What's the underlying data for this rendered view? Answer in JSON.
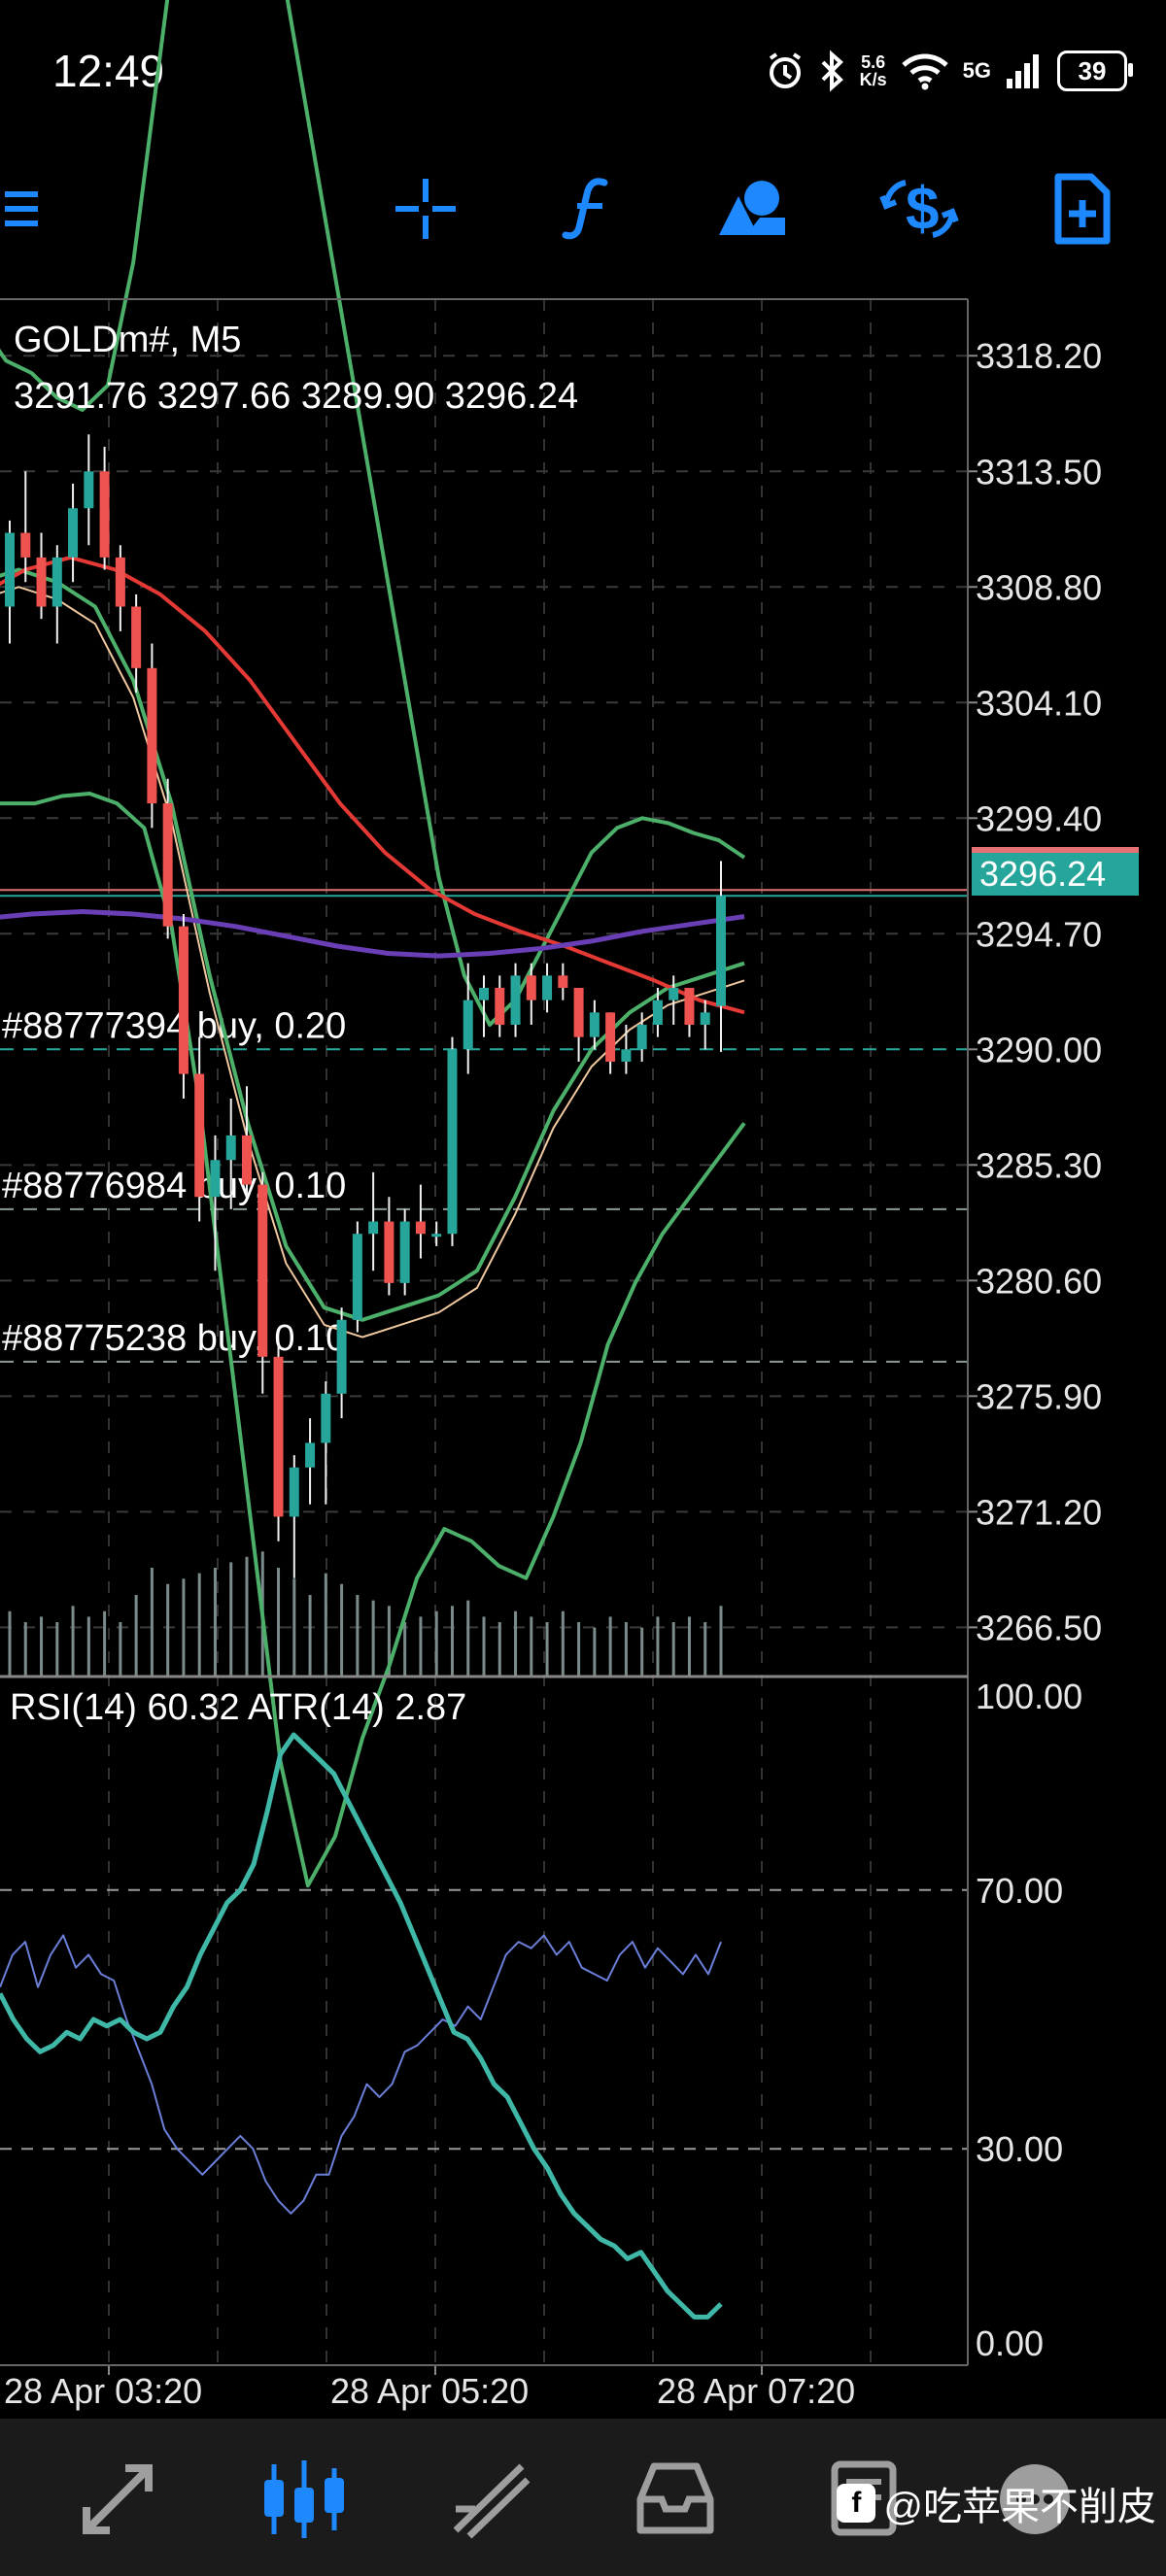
{
  "status_bar": {
    "time": "12:49",
    "net_speed_value": "5.6",
    "net_speed_unit": "K/s",
    "network": "5G",
    "battery": "39",
    "icons": [
      "alarm-icon",
      "bluetooth-icon",
      "wifi-icon",
      "signal-icon",
      "battery-icon"
    ]
  },
  "toolbar": {
    "icons": [
      "menu-icon",
      "crosshair-icon",
      "indicators-icon",
      "objects-icon",
      "trade-icon",
      "new-order-icon"
    ],
    "accent": "#1e88ff"
  },
  "chart": {
    "symbol": "GOLDm#, M5",
    "ohlc": "3291.76 3297.66 3289.90 3296.24",
    "current_price": "3296.24",
    "price_ticks": [
      "3318.20",
      "3313.50",
      "3308.80",
      "3304.10",
      "3299.40",
      "3294.70",
      "3290.00",
      "3285.30",
      "3280.60",
      "3275.90",
      "3271.20",
      "3266.50"
    ],
    "orders": [
      {
        "label": "#88777394 buy, 0.20",
        "price": 3290.0
      },
      {
        "label": "#88776984 buy, 0.10",
        "price": 3283.5
      },
      {
        "label": "#88775238 buy, 0.10",
        "price": 3277.3
      }
    ],
    "colors": {
      "bull": "#26a69a",
      "bear": "#ef5350",
      "bollinger": "#4caf6a",
      "ma_red": "#e53935",
      "ma_purple": "#6a3fb5",
      "ma_thin": "#f0c8a0",
      "price_line": "#e57373"
    }
  },
  "chart_data": {
    "type": "line",
    "price_range": [
      3264.5,
      3320.5
    ],
    "candles": [
      [
        3308.0,
        3311.5,
        3306.5,
        3311.0
      ],
      [
        3311.0,
        3313.5,
        3309.0,
        3310.0
      ],
      [
        3310.0,
        3311.0,
        3307.5,
        3308.0
      ],
      [
        3308.0,
        3310.5,
        3306.5,
        3310.0
      ],
      [
        3310.0,
        3313.0,
        3309.0,
        3312.0
      ],
      [
        3312.0,
        3315.0,
        3310.5,
        3313.5
      ],
      [
        3313.5,
        3314.5,
        3309.5,
        3310.0
      ],
      [
        3310.0,
        3310.5,
        3307.0,
        3308.0
      ],
      [
        3308.0,
        3308.5,
        3304.5,
        3305.5
      ],
      [
        3305.5,
        3306.5,
        3299.0,
        3300.0
      ],
      [
        3300.0,
        3301.0,
        3294.5,
        3295.0
      ],
      [
        3295.0,
        3295.5,
        3288.0,
        3289.0
      ],
      [
        3289.0,
        3290.5,
        3283.0,
        3284.0
      ],
      [
        3284.0,
        3286.5,
        3281.0,
        3285.5
      ],
      [
        3285.5,
        3288.0,
        3283.5,
        3286.5
      ],
      [
        3286.5,
        3288.5,
        3284.0,
        3284.5
      ],
      [
        3284.5,
        3285.0,
        3276.0,
        3277.5
      ],
      [
        3277.5,
        3278.0,
        3270.0,
        3271.0
      ],
      [
        3271.0,
        3273.5,
        3268.5,
        3273.0
      ],
      [
        3273.0,
        3275.0,
        3271.5,
        3274.0
      ],
      [
        3274.0,
        3276.5,
        3271.5,
        3276.0
      ],
      [
        3276.0,
        3279.5,
        3275.0,
        3279.0
      ],
      [
        3279.0,
        3283.0,
        3278.5,
        3282.5
      ],
      [
        3282.5,
        3285.0,
        3281.0,
        3283.0
      ],
      [
        3283.0,
        3284.0,
        3280.0,
        3280.5
      ],
      [
        3280.5,
        3283.5,
        3280.0,
        3283.0
      ],
      [
        3283.0,
        3284.5,
        3281.5,
        3282.5
      ],
      [
        3282.5,
        3283.0,
        3282.0,
        3282.5
      ],
      [
        3282.5,
        3290.5,
        3282.0,
        3290.0
      ],
      [
        3290.0,
        3293.5,
        3289.0,
        3292.0
      ],
      [
        3292.0,
        3293.0,
        3290.5,
        3292.5
      ],
      [
        3292.5,
        3293.0,
        3290.5,
        3291.0
      ],
      [
        3291.0,
        3293.5,
        3290.5,
        3293.0
      ],
      [
        3293.0,
        3293.5,
        3291.0,
        3292.0
      ],
      [
        3292.0,
        3293.5,
        3291.5,
        3293.0
      ],
      [
        3293.0,
        3293.5,
        3292.0,
        3292.5
      ],
      [
        3292.5,
        3292.5,
        3289.5,
        3290.5
      ],
      [
        3290.5,
        3292.0,
        3290.0,
        3291.5
      ],
      [
        3291.5,
        3291.5,
        3289.0,
        3289.5
      ],
      [
        3289.5,
        3291.0,
        3289.0,
        3290.0
      ],
      [
        3290.0,
        3291.5,
        3289.5,
        3291.0
      ],
      [
        3291.0,
        3292.5,
        3290.5,
        3292.0
      ],
      [
        3292.0,
        3293.0,
        3291.0,
        3292.5
      ],
      [
        3292.5,
        3292.5,
        3290.5,
        3291.0
      ],
      [
        3291.0,
        3292.0,
        3290.0,
        3291.5
      ],
      [
        3291.76,
        3297.66,
        3289.9,
        3296.24
      ]
    ],
    "bb_upper": [
      3319.5,
      3318.0,
      3317.5,
      3316.5,
      3316.0,
      3317.0,
      3322.0,
      3330.0,
      3338.0,
      3342.0,
      3341.0,
      3338.0,
      3333.0,
      3327.0,
      3321.0,
      3315.0,
      3309.0,
      3303.0,
      3297.0,
      3293.0,
      3291.0,
      3292.0,
      3294.0,
      3296.0,
      3298.0,
      3299.0,
      3299.4,
      3299.2,
      3298.8,
      3298.5,
      3297.8
    ],
    "bb_lower": [
      3300.0,
      3300.0,
      3300.0,
      3300.3,
      3300.4,
      3300.0,
      3299.0,
      3295.0,
      3288.0,
      3279.0,
      3270.0,
      3261.0,
      3256.0,
      3258.0,
      3262.0,
      3265.0,
      3268.5,
      3270.5,
      3270.0,
      3269.0,
      3268.5,
      3271.0,
      3274.0,
      3278.0,
      3280.5,
      3282.5,
      3284.0,
      3285.5,
      3287.0
    ],
    "bb_middle": [
      3309.0,
      3309.5,
      3309.0,
      3308.0,
      3305.0,
      3300.0,
      3293.0,
      3287.0,
      3282.0,
      3279.5,
      3279.0,
      3279.5,
      3280.0,
      3281.0,
      3284.0,
      3287.5,
      3290.0,
      3291.5,
      3292.5,
      3293.0,
      3293.5
    ],
    "ma_red": [
      3308.5,
      3309.5,
      3310.0,
      3309.5,
      3308.5,
      3307.0,
      3305.0,
      3302.5,
      3300.0,
      3298.0,
      3296.5,
      3295.5,
      3294.8,
      3294.2,
      3293.5,
      3292.8,
      3292.0,
      3291.5
    ],
    "ma_purple": [
      3295.3,
      3295.5,
      3295.6,
      3295.5,
      3295.3,
      3295.0,
      3294.6,
      3294.2,
      3293.9,
      3293.8,
      3293.9,
      3294.1,
      3294.4,
      3294.8,
      3295.1,
      3295.4
    ],
    "volume": [
      24,
      20,
      22,
      20,
      26,
      22,
      24,
      20,
      30,
      40,
      34,
      36,
      38,
      40,
      42,
      44,
      46,
      40,
      36,
      30,
      38,
      34,
      30,
      28,
      26,
      20,
      22,
      24,
      26,
      28,
      22,
      20,
      24,
      22,
      20,
      24,
      20,
      18,
      22,
      20,
      18,
      22,
      20,
      22,
      20,
      26
    ],
    "rsi_value": "RSI(14) 60.32 ATR(14) 2.87",
    "rsi_levels": [
      "100.00",
      "70.00",
      "30.00",
      "0.00"
    ],
    "rsi": [
      55,
      60,
      62,
      55,
      60,
      63,
      58,
      60,
      57,
      56,
      50,
      45,
      40,
      33,
      30,
      28,
      26,
      28,
      30,
      32,
      30,
      25,
      22,
      20,
      22,
      26,
      26,
      32,
      35,
      40,
      38,
      40,
      45,
      46,
      48,
      50,
      49,
      52,
      50,
      55,
      60,
      62,
      61,
      63,
      60,
      62,
      58,
      57,
      56,
      60,
      62,
      58,
      61,
      59,
      57,
      60,
      57,
      62
    ],
    "atr": [
      54,
      50,
      47,
      45,
      46,
      48,
      47,
      50,
      49,
      50,
      48,
      47,
      48,
      52,
      55,
      60,
      64,
      68,
      70,
      74,
      82,
      91,
      94,
      92,
      90,
      88,
      84,
      80,
      76,
      72,
      68,
      63,
      58,
      53,
      48,
      47,
      44,
      40,
      38,
      34,
      30,
      27,
      23,
      20,
      18,
      16,
      15,
      13,
      14,
      11,
      8,
      6,
      4,
      4,
      6
    ],
    "x_labels": [
      "28 Apr 03:20",
      "28 Apr 05:20",
      "28 Apr 07:20"
    ]
  },
  "bottom_nav": {
    "items": [
      "quotes-icon",
      "chart-icon",
      "trade-icon",
      "history-icon",
      "messages-icon",
      "settings-icon"
    ]
  },
  "watermark": {
    "logo": "f",
    "text": "@吃苹果不削皮"
  }
}
